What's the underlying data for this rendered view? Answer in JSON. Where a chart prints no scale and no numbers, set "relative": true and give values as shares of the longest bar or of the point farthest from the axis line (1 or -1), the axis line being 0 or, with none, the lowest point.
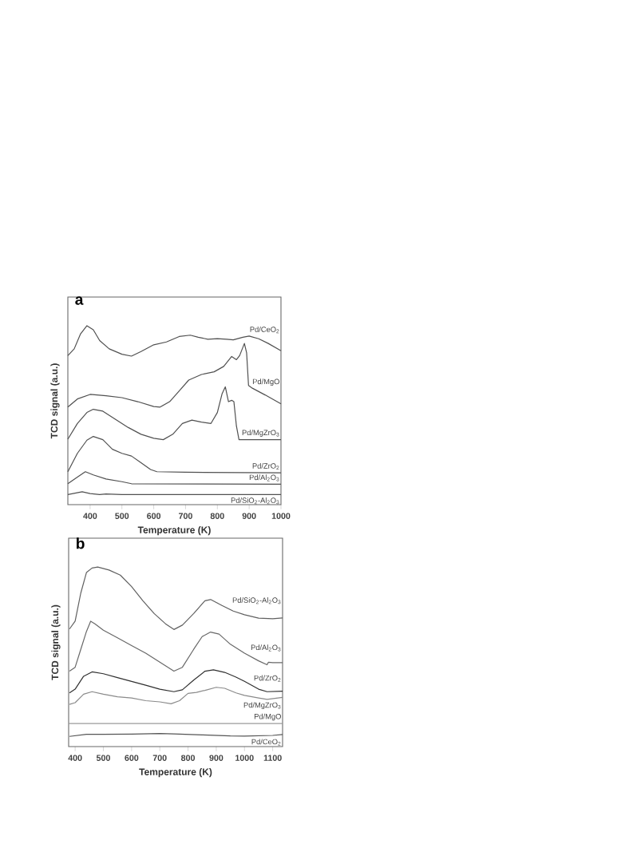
{
  "chart_data": [
    {
      "type": "line",
      "title": "a",
      "xlabel": "Temperature (K)",
      "ylabel": "TCD signal (a.u.)",
      "relative": true,
      "xlim": [
        330,
        1000
      ],
      "xticks": [
        400,
        500,
        600,
        700,
        800,
        900,
        1000
      ],
      "series": [
        {
          "name": "Pd/CeO$_{2}$",
          "color": "#505050",
          "x": [
            330,
            350,
            370,
            390,
            410,
            430,
            460,
            500,
            530,
            560,
            600,
            640,
            680,
            715,
            740,
            770,
            800,
            830,
            850,
            880,
            900,
            930,
            960,
            1000
          ],
          "values": [
            0.823,
            0.863,
            0.952,
            1.0,
            0.976,
            0.912,
            0.863,
            0.831,
            0.82,
            0.847,
            0.887,
            0.904,
            0.936,
            0.944,
            0.932,
            0.92,
            0.923,
            0.92,
            0.916,
            0.932,
            0.939,
            0.923,
            0.895,
            0.852
          ]
        },
        {
          "name": "Pd/MgO",
          "color": "#505050",
          "x": [
            330,
            360,
            400,
            450,
            500,
            550,
            600,
            620,
            650,
            680,
            710,
            750,
            790,
            820,
            845,
            860,
            870,
            885,
            892,
            898,
            910,
            950,
            1000
          ],
          "values": [
            0.518,
            0.566,
            0.593,
            0.585,
            0.574,
            0.55,
            0.521,
            0.518,
            0.55,
            0.614,
            0.678,
            0.711,
            0.727,
            0.759,
            0.818,
            0.799,
            0.823,
            0.895,
            0.839,
            0.646,
            0.63,
            0.59,
            0.537
          ]
        },
        {
          "name": "Pd/MgZrO$_{3}$",
          "color": "#505050",
          "x": [
            330,
            360,
            390,
            410,
            440,
            480,
            520,
            560,
            600,
            630,
            660,
            690,
            720,
            750,
            780,
            800,
            815,
            825,
            835,
            845,
            852,
            860,
            868,
            900,
            1000
          ],
          "values": [
            0.328,
            0.421,
            0.486,
            0.505,
            0.494,
            0.445,
            0.397,
            0.357,
            0.333,
            0.325,
            0.357,
            0.421,
            0.441,
            0.429,
            0.421,
            0.486,
            0.598,
            0.638,
            0.55,
            0.558,
            0.55,
            0.405,
            0.325,
            0.325,
            0.325
          ]
        },
        {
          "name": "Pd/ZrO$_{2}$",
          "color": "#505050",
          "x": [
            330,
            360,
            390,
            410,
            440,
            470,
            500,
            530,
            560,
            590,
            610,
            700,
            1000
          ],
          "values": [
            0.135,
            0.244,
            0.322,
            0.344,
            0.325,
            0.268,
            0.244,
            0.228,
            0.188,
            0.148,
            0.135,
            0.132,
            0.129
          ]
        },
        {
          "name": "Pd/Al$_{2}$O$_{3}$",
          "color": "#505050",
          "x": [
            330,
            360,
            385,
            410,
            450,
            500,
            530,
            1000
          ],
          "values": [
            0.064,
            0.103,
            0.135,
            0.116,
            0.092,
            0.076,
            0.064,
            0.061
          ]
        },
        {
          "name": "Pd/SiO$_{2}$-Al$_{2}$O$_{3}$",
          "color": "#505050",
          "x": [
            330,
            375,
            400,
            430,
            450,
            500,
            1000
          ],
          "values": [
            0.0,
            0.016,
            0.006,
            0.0,
            0.003,
            0.0,
            0.0
          ]
        }
      ]
    },
    {
      "type": "line",
      "title": "b",
      "xlabel": "Temperature (K)",
      "ylabel": "TCD signal (a.u.)",
      "relative": true,
      "xlim": [
        377,
        1135
      ],
      "xticks": [
        400,
        500,
        600,
        700,
        800,
        900,
        1000,
        1100
      ],
      "series": [
        {
          "name": "Pd/SiO$_{2}$-Al$_{2}$O$_{3}$",
          "color": "#606060",
          "x": [
            380,
            400,
            420,
            440,
            460,
            480,
            520,
            560,
            600,
            640,
            680,
            720,
            750,
            780,
            820,
            860,
            880,
            920,
            960,
            1000,
            1050,
            1100,
            1135
          ],
          "values": [
            0.634,
            0.68,
            0.846,
            0.967,
            0.994,
            1.0,
            0.982,
            0.952,
            0.884,
            0.801,
            0.725,
            0.665,
            0.631,
            0.657,
            0.725,
            0.801,
            0.808,
            0.773,
            0.74,
            0.718,
            0.698,
            0.695,
            0.699
          ]
        },
        {
          "name": "Pd/Al$_{2}$O$_{3}$",
          "color": "#686868",
          "x": [
            380,
            400,
            420,
            440,
            455,
            470,
            500,
            550,
            600,
            650,
            700,
            750,
            780,
            820,
            850,
            880,
            910,
            950,
            1000,
            1050,
            1080,
            1085,
            1100,
            1135
          ],
          "values": [
            0.385,
            0.408,
            0.514,
            0.619,
            0.68,
            0.665,
            0.627,
            0.582,
            0.536,
            0.491,
            0.438,
            0.385,
            0.408,
            0.514,
            0.589,
            0.616,
            0.604,
            0.544,
            0.491,
            0.446,
            0.423,
            0.438,
            0.435,
            0.435
          ]
        },
        {
          "name": "Pd/ZrO$_{2}$",
          "color": "#303030",
          "x": [
            380,
            400,
            430,
            460,
            500,
            550,
            600,
            650,
            700,
            750,
            780,
            820,
            860,
            890,
            930,
            970,
            1000,
            1050,
            1080,
            1135
          ],
          "values": [
            0.257,
            0.279,
            0.355,
            0.381,
            0.37,
            0.347,
            0.325,
            0.302,
            0.279,
            0.264,
            0.275,
            0.332,
            0.385,
            0.393,
            0.378,
            0.35,
            0.325,
            0.279,
            0.264,
            0.267
          ]
        },
        {
          "name": "Pd/MgZrO$_{3}$",
          "color": "#8a8a8a",
          "x": [
            380,
            400,
            430,
            460,
            500,
            550,
            600,
            650,
            700,
            740,
            770,
            800,
            830,
            860,
            900,
            930,
            970,
            1000,
            1050,
            1080,
            1135
          ],
          "values": [
            0.189,
            0.199,
            0.249,
            0.264,
            0.249,
            0.234,
            0.227,
            0.211,
            0.204,
            0.193,
            0.211,
            0.254,
            0.26,
            0.272,
            0.29,
            0.284,
            0.257,
            0.242,
            0.227,
            0.219,
            0.23
          ]
        },
        {
          "name": "Pd/MgO",
          "color": "#9a9a9a",
          "x": [
            377,
            1135
          ],
          "values": [
            0.076,
            0.076
          ]
        },
        {
          "name": "Pd/CeO$_{2}$",
          "color": "#555555",
          "x": [
            380,
            440,
            500,
            600,
            700,
            750,
            850,
            950,
            1000,
            1100,
            1135
          ],
          "values": [
            0.0,
            0.012,
            0.012,
            0.014,
            0.017,
            0.015,
            0.009,
            0.003,
            0.002,
            0.006,
            0.011
          ]
        }
      ]
    }
  ]
}
